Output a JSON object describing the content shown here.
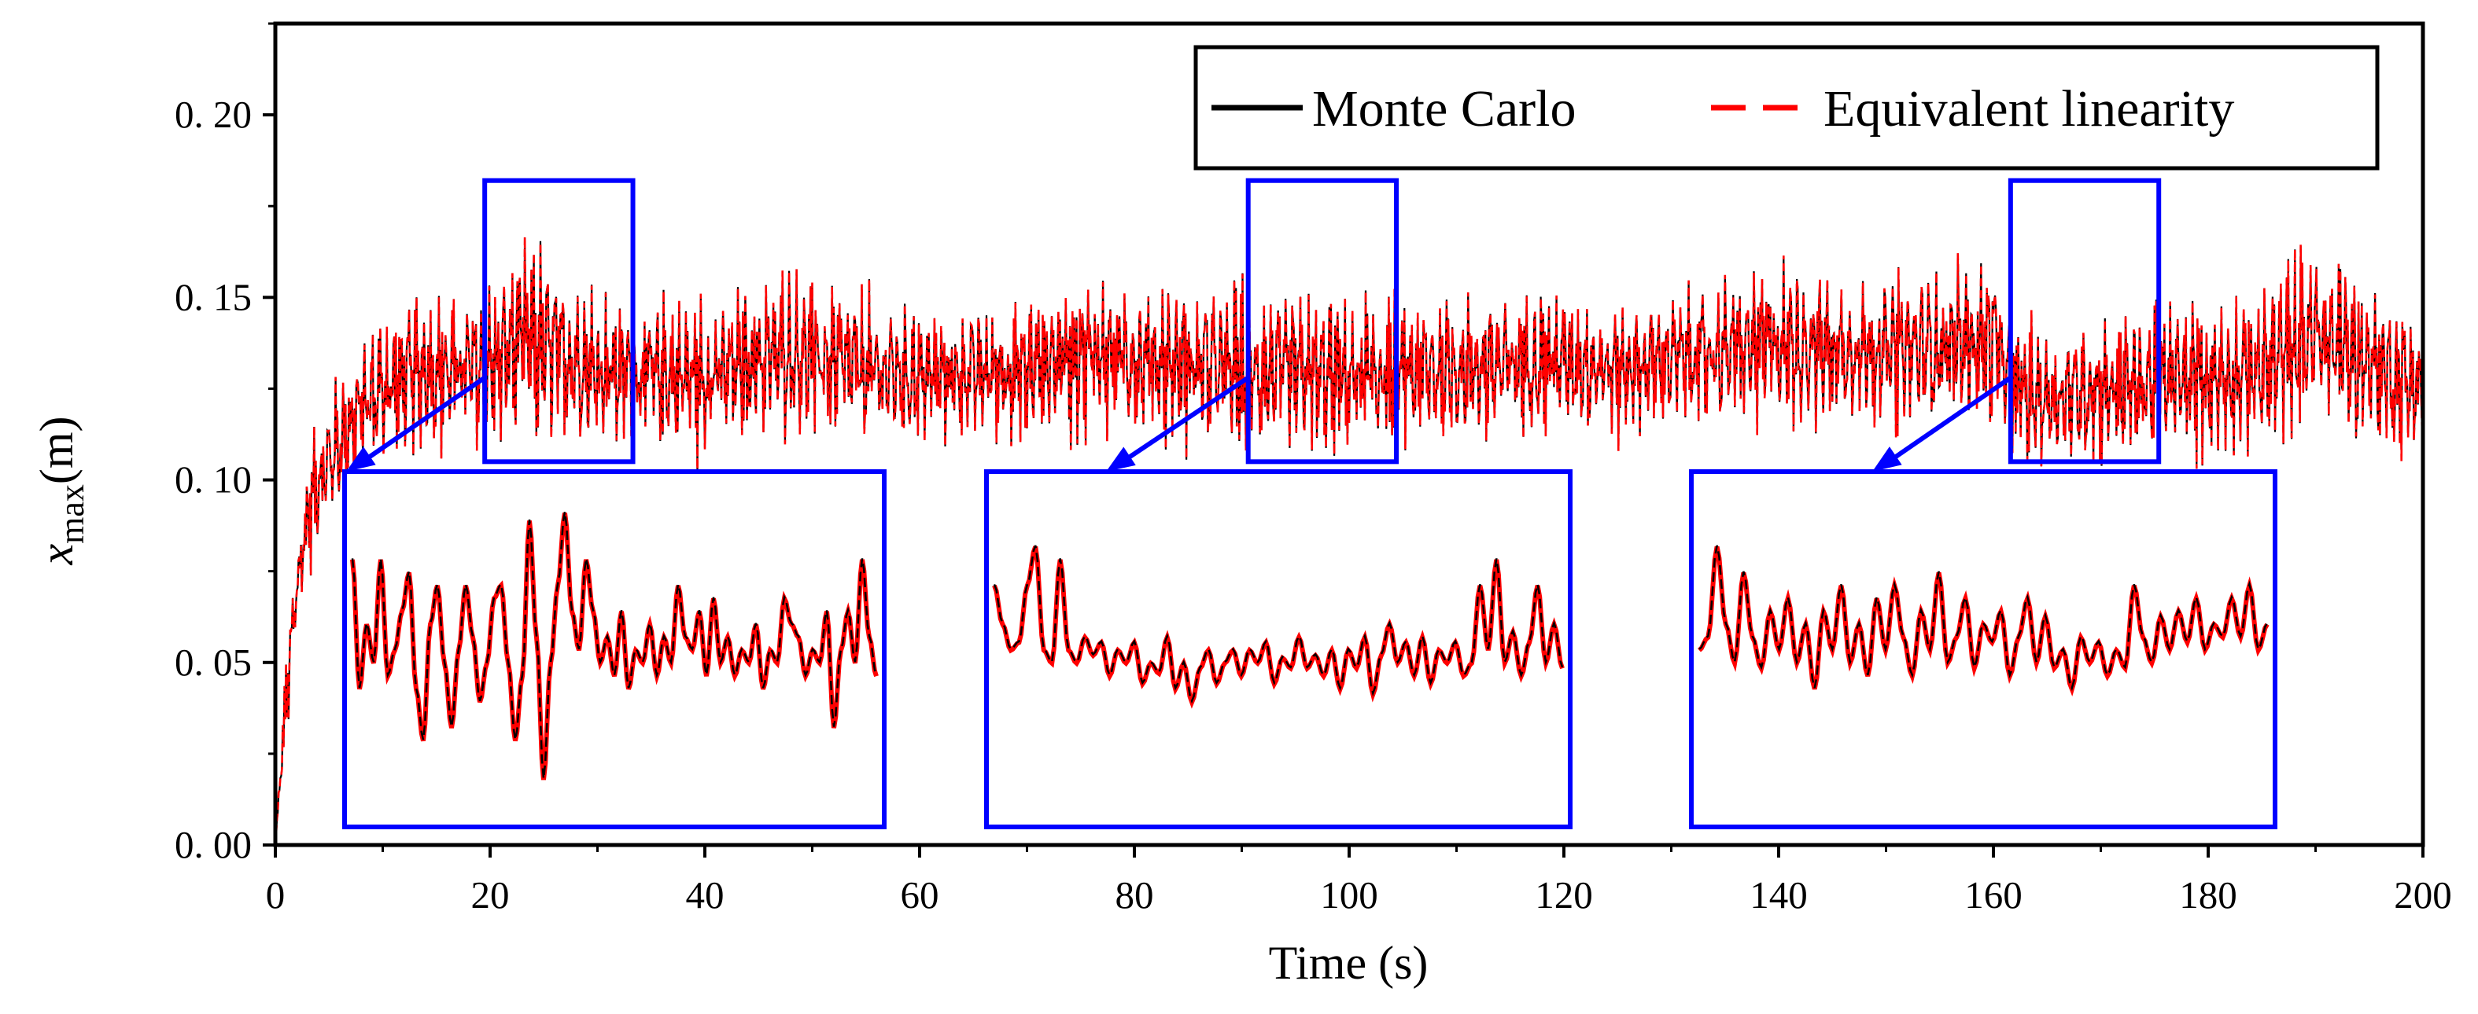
{
  "chart_data": {
    "type": "line",
    "xlabel": "Time (s)",
    "ylabel_main": "x",
    "ylabel_sub": "max",
    "ylabel_unit": "(m)",
    "xlim": [
      0,
      200
    ],
    "ylim": [
      0,
      0.225
    ],
    "x_ticks": [
      0,
      20,
      40,
      60,
      80,
      100,
      120,
      140,
      160,
      180,
      200
    ],
    "x_tick_labels": [
      "0",
      "20",
      "40",
      "60",
      "80",
      "100",
      "120",
      "140",
      "160",
      "180",
      "200"
    ],
    "y_ticks": [
      0,
      0.05,
      0.1,
      0.15,
      0.2
    ],
    "y_tick_labels": [
      "0. 00",
      "0. 05",
      "0. 10",
      "0. 15",
      "0. 20"
    ],
    "grid": false,
    "legend_position": "top-right",
    "series": [
      {
        "name": "Monte Carlo",
        "color": "#000000",
        "style": "solid"
      },
      {
        "name": "Equivalent linearity",
        "color": "#ff0000",
        "style": "dashed"
      }
    ],
    "x": [
      0,
      1,
      2,
      3,
      4,
      6,
      8,
      10,
      14,
      20,
      23,
      30,
      40,
      48,
      55,
      60,
      70,
      75,
      80,
      90,
      100,
      110,
      120,
      125,
      130,
      140,
      150,
      160,
      162,
      165,
      170,
      180,
      185,
      190,
      195,
      200
    ],
    "envelope_mean": [
      0.0,
      0.04,
      0.07,
      0.09,
      0.1,
      0.11,
      0.12,
      0.125,
      0.13,
      0.13,
      0.138,
      0.13,
      0.128,
      0.135,
      0.13,
      0.128,
      0.13,
      0.135,
      0.133,
      0.13,
      0.128,
      0.13,
      0.133,
      0.13,
      0.133,
      0.137,
      0.135,
      0.138,
      0.125,
      0.122,
      0.125,
      0.128,
      0.13,
      0.14,
      0.132,
      0.125
    ],
    "envelope_amplitude": [
      0.0,
      0.01,
      0.012,
      0.014,
      0.015,
      0.016,
      0.017,
      0.018,
      0.018,
      0.02,
      0.025,
      0.018,
      0.018,
      0.02,
      0.018,
      0.015,
      0.017,
      0.018,
      0.018,
      0.02,
      0.018,
      0.018,
      0.016,
      0.015,
      0.016,
      0.02,
      0.018,
      0.02,
      0.018,
      0.016,
      0.017,
      0.018,
      0.02,
      0.022,
      0.02,
      0.018
    ],
    "zoom_source_ranges": [
      [
        19.5,
        33.3
      ],
      [
        90.6,
        104.4
      ],
      [
        161.6,
        175.4
      ]
    ],
    "zoom_source_ylim": [
      0.105,
      0.182
    ],
    "zoom_data_ylim": [
      0.06,
      0.185
    ],
    "zoom_color": "#0000ff",
    "zoom_insets": [
      {
        "source": [
          19.5,
          33.3
        ],
        "values": [
          0.16,
          0.11,
          0.135,
          0.12,
          0.16,
          0.115,
          0.125,
          0.14,
          0.155,
          0.11,
          0.09,
          0.135,
          0.15,
          0.12,
          0.095,
          0.125,
          0.15,
          0.13,
          0.105,
          0.12,
          0.145,
          0.15,
          0.12,
          0.09,
          0.115,
          0.175,
          0.13,
          0.075,
          0.12,
          0.15,
          0.178,
          0.14,
          0.125,
          0.16,
          0.14,
          0.12,
          0.13,
          0.115,
          0.14,
          0.11,
          0.125,
          0.12,
          0.135,
          0.115,
          0.13,
          0.12,
          0.15,
          0.13,
          0.125,
          0.14,
          0.115,
          0.145,
          0.12,
          0.13,
          0.115,
          0.125,
          0.12,
          0.135,
          0.11,
          0.125,
          0.12,
          0.145,
          0.135,
          0.13,
          0.115,
          0.125,
          0.12,
          0.14,
          0.095,
          0.125,
          0.14,
          0.12,
          0.16,
          0.13,
          0.115
        ]
      },
      {
        "source": [
          90.6,
          104.4
        ],
        "values": [
          0.15,
          0.135,
          0.125,
          0.128,
          0.15,
          0.165,
          0.125,
          0.12,
          0.16,
          0.125,
          0.12,
          0.13,
          0.123,
          0.128,
          0.115,
          0.125,
          0.12,
          0.128,
          0.112,
          0.12,
          0.116,
          0.13,
          0.11,
          0.12,
          0.105,
          0.118,
          0.125,
          0.112,
          0.12,
          0.125,
          0.115,
          0.125,
          0.12,
          0.128,
          0.112,
          0.122,
          0.118,
          0.13,
          0.118,
          0.123,
          0.115,
          0.125,
          0.11,
          0.125,
          0.118,
          0.13,
          0.108,
          0.123,
          0.135,
          0.12,
          0.128,
          0.115,
          0.13,
          0.112,
          0.125,
          0.12,
          0.128,
          0.115,
          0.12,
          0.15,
          0.125,
          0.16,
          0.12,
          0.132,
          0.115,
          0.128,
          0.15,
          0.12,
          0.135,
          0.118
        ]
      },
      {
        "source": [
          161.6,
          175.4
        ],
        "values": [
          0.125,
          0.13,
          0.165,
          0.135,
          0.12,
          0.155,
          0.13,
          0.118,
          0.14,
          0.125,
          0.145,
          0.12,
          0.135,
          0.11,
          0.14,
          0.125,
          0.15,
          0.12,
          0.135,
          0.115,
          0.145,
          0.125,
          0.15,
          0.13,
          0.115,
          0.14,
          0.125,
          0.155,
          0.12,
          0.13,
          0.145,
          0.118,
          0.135,
          0.128,
          0.14,
          0.115,
          0.13,
          0.145,
          0.12,
          0.138,
          0.118,
          0.125,
          0.11,
          0.13,
          0.12,
          0.128,
          0.115,
          0.125,
          0.118,
          0.15,
          0.13,
          0.12,
          0.138,
          0.125,
          0.14,
          0.128,
          0.145,
          0.125,
          0.135,
          0.13,
          0.145,
          0.13,
          0.15,
          0.125,
          0.135
        ]
      }
    ]
  }
}
